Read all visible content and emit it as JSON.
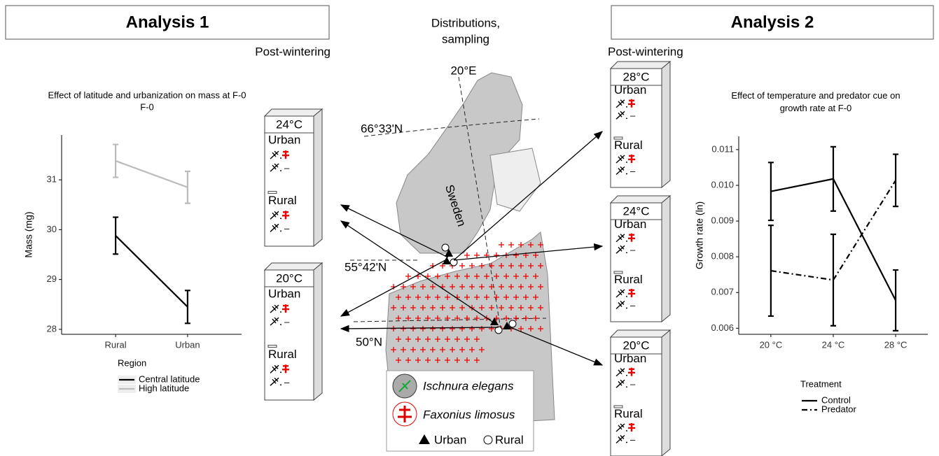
{
  "headers": {
    "analysis_1": "Analysis 1",
    "analysis_2": "Analysis 2",
    "distributions": [
      "Distributions,",
      "sampling"
    ]
  },
  "post_wintering": "Post-wintering",
  "incubators": {
    "left": [
      {
        "temp": "24°C"
      },
      {
        "temp": "20°C"
      }
    ],
    "right": [
      {
        "temp": "28°C"
      },
      {
        "temp": "24°C"
      },
      {
        "temp": "20°C"
      }
    ],
    "urban": "Urban",
    "rural": "Rural",
    "absent": "–"
  },
  "map": {
    "labels": [
      "20°E",
      "66°33'N",
      "Sweden",
      "55°42'N",
      "50°N"
    ]
  },
  "legend": {
    "species": [
      "Ischnura elegans",
      "Faxonius limosus"
    ],
    "sites": [
      "Urban",
      "Rural"
    ]
  },
  "chart_data": [
    {
      "type": "line",
      "title": "Effect of latitude and urbanization on mass at F-0",
      "subtitle": "F-0",
      "y_label": "Mass (mg)",
      "categories": [
        "Rural",
        "Urban"
      ],
      "ylim": [
        27.9,
        31.9
      ],
      "yticks": [
        28,
        29,
        30,
        31
      ],
      "legend_title": "Region",
      "series": [
        {
          "name": "Central latitude",
          "color": "#000000",
          "dash": "solid",
          "values": [
            29.88,
            28.45
          ],
          "errors": [
            0.37,
            0.33
          ]
        },
        {
          "name": "High latitude",
          "color": "#bbbbbb",
          "dash": "solid",
          "values": [
            31.38,
            30.85
          ],
          "errors": [
            0.33,
            0.32
          ]
        }
      ]
    },
    {
      "type": "line",
      "title": "Effect of temperature and predator cue on growth rate at F-0",
      "y_label": "Growth rate (ln)",
      "categories": [
        "20 °C",
        "24 °C",
        "28 °C"
      ],
      "ylim": [
        0.00583,
        0.01137
      ],
      "yticks": [
        0.006,
        0.007,
        0.008,
        0.009,
        {
          "value": 0.01,
          "label": "0.010"
        },
        0.011
      ],
      "legend_title": "Treatment",
      "series": [
        {
          "name": "Control",
          "color": "#000000",
          "dash": "solid",
          "values": [
            0.00983,
            0.01018,
            0.00678
          ],
          "errors": [
            0.00081,
            0.0009,
            0.00085
          ]
        },
        {
          "name": "Predator",
          "color": "#000000",
          "dash": "dashdot",
          "values": [
            0.00761,
            0.00735,
            0.01014
          ],
          "errors": [
            0.00127,
            0.00128,
            0.00073
          ]
        }
      ]
    }
  ]
}
